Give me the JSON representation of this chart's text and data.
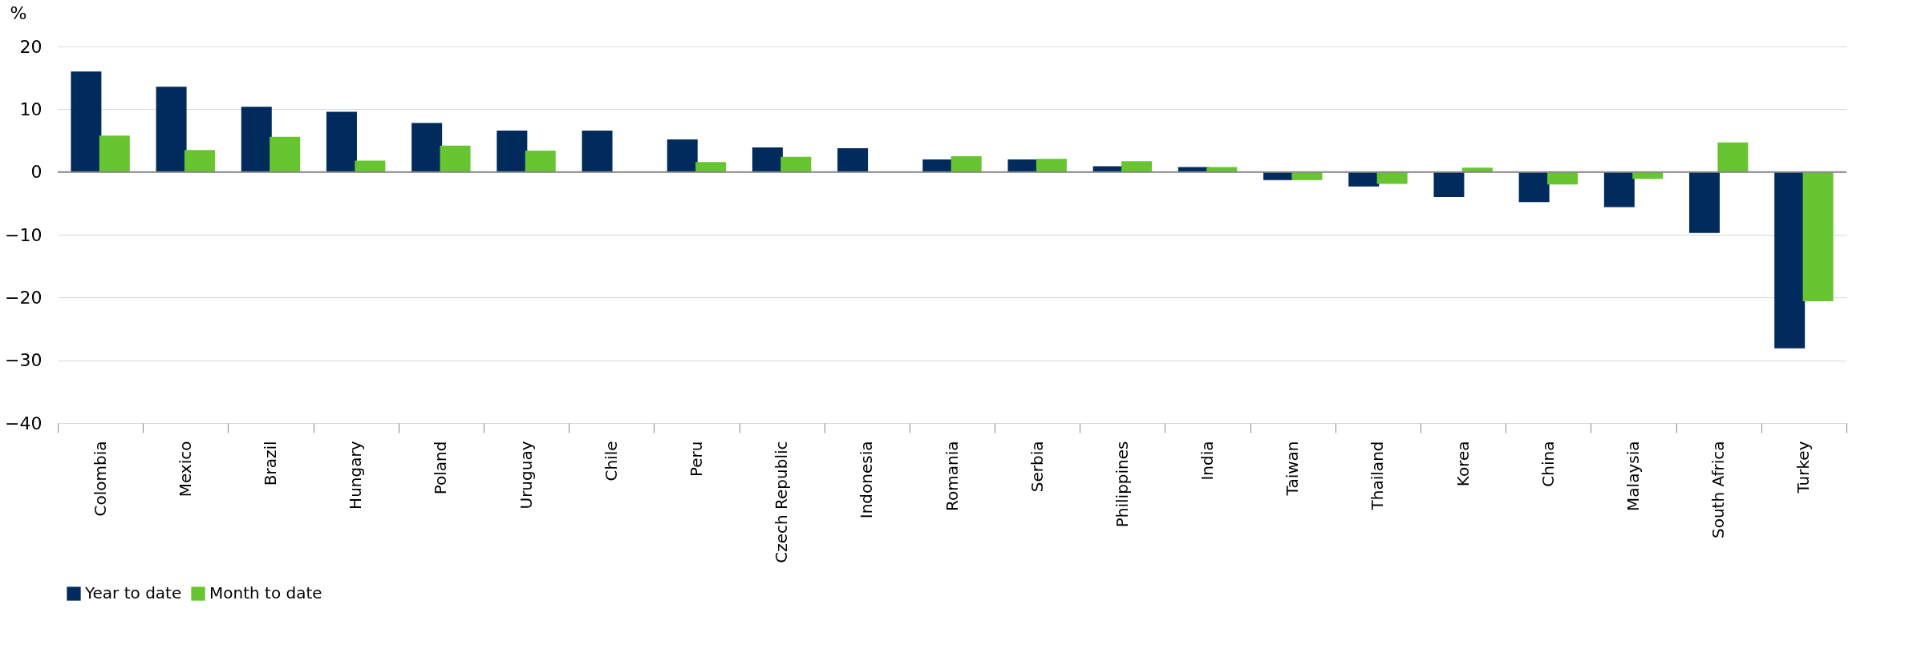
{
  "chart_data": {
    "type": "bar",
    "ylabel": "%",
    "categories": [
      "Colombia",
      "Mexico",
      "Brazil",
      "Hungary",
      "Poland",
      "Uruguay",
      "Chile",
      "Peru",
      "Czech Republic",
      "Indonesia",
      "Romania",
      "Serbia",
      "Philippines",
      "India",
      "Taiwan",
      "Thailand",
      "Korea",
      "China",
      "Malaysia",
      "South Africa",
      "Turkey"
    ],
    "series": [
      {
        "name": "Year to date",
        "color": "#002b5c",
        "values": [
          16.0,
          13.6,
          10.4,
          9.6,
          7.8,
          6.6,
          6.6,
          5.2,
          3.9,
          3.8,
          2.0,
          2.0,
          0.9,
          0.8,
          -1.3,
          -2.3,
          -4.0,
          -4.8,
          -5.6,
          -9.7,
          -28.1
        ]
      },
      {
        "name": "Month to date",
        "color": "#66c530",
        "values": [
          5.8,
          3.5,
          5.6,
          1.8,
          4.2,
          3.4,
          0.1,
          1.6,
          2.4,
          0,
          2.5,
          2.1,
          1.7,
          0.8,
          -1.3,
          -1.9,
          0.7,
          -2.0,
          -1.1,
          4.7,
          -20.6
        ]
      }
    ],
    "ylim": [
      -40,
      20
    ],
    "yticks": [
      -40,
      -30,
      -20,
      -10,
      0,
      10,
      20
    ],
    "grid": "y",
    "legend": "bottom"
  }
}
